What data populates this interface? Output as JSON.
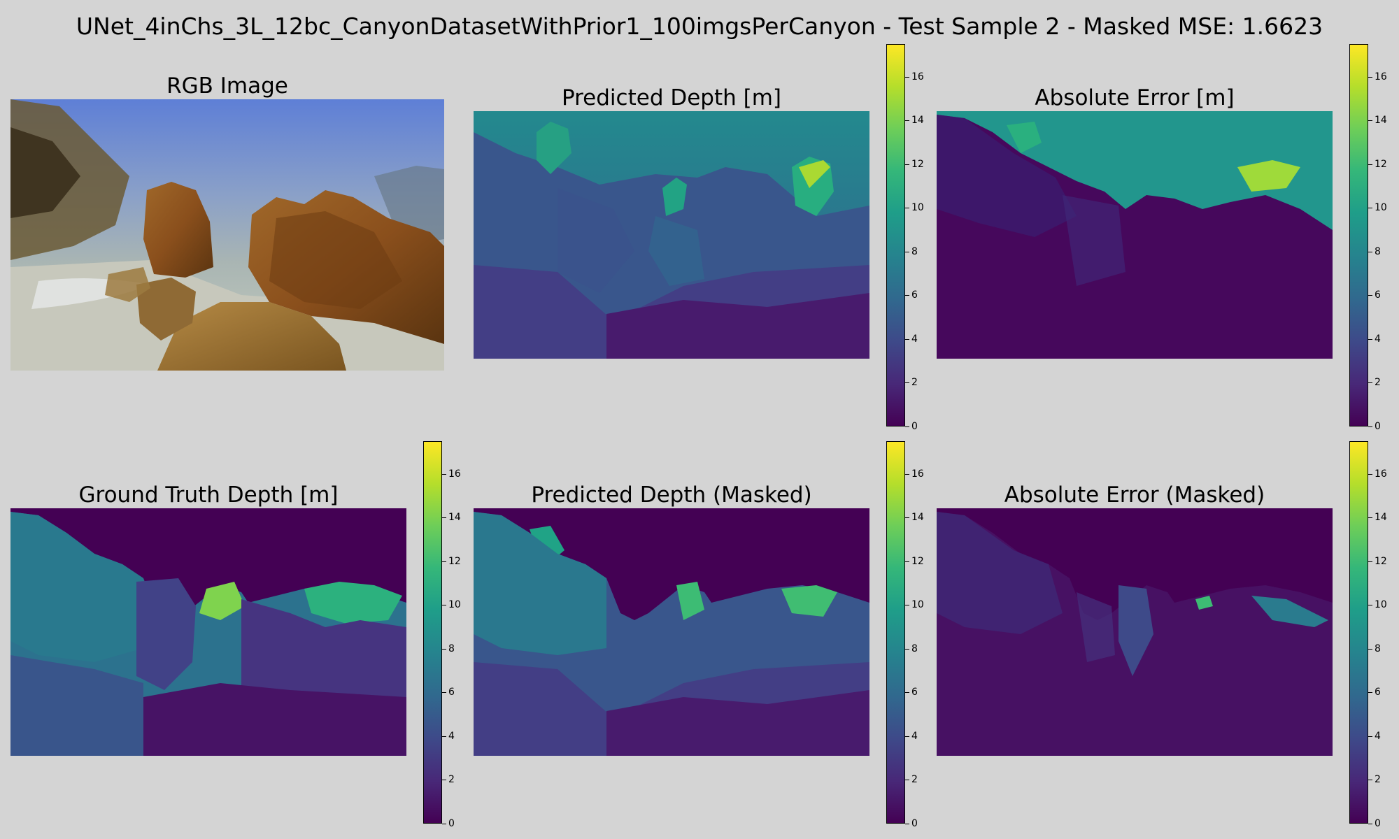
{
  "figure_title": "UNet_4inChs_3L_12bc_CanyonDatasetWithPrior1_100imgsPerCanyon - Test Sample 2 - Masked MSE: 1.6623",
  "colormap": {
    "name": "viridis",
    "stops": [
      "#440154",
      "#482878",
      "#3e4989",
      "#31688e",
      "#26828e",
      "#1f9e89",
      "#35b779",
      "#6ece58",
      "#b5de2b",
      "#fde725"
    ]
  },
  "chart_data": [
    {
      "type": "image",
      "title": "RGB Image",
      "content": "underwater photo of rocks on a sandy seabed"
    },
    {
      "type": "heatmap",
      "title": "Predicted Depth [m]",
      "colorbar": {
        "min": 0,
        "max": 17.5,
        "ticks": [
          0,
          2,
          4,
          6,
          8,
          10,
          12,
          14,
          16
        ]
      }
    },
    {
      "type": "heatmap",
      "title": "Absolute Error [m]",
      "colorbar": {
        "min": 0,
        "max": 17.5,
        "ticks": [
          0,
          2,
          4,
          6,
          8,
          10,
          12,
          14,
          16
        ]
      }
    },
    {
      "type": "heatmap",
      "title": "Ground Truth Depth [m]",
      "colorbar": {
        "min": 0,
        "max": 17.5,
        "ticks": [
          0,
          2,
          4,
          6,
          8,
          10,
          12,
          14,
          16
        ]
      }
    },
    {
      "type": "heatmap",
      "title": "Predicted Depth (Masked)",
      "colorbar": {
        "min": 0,
        "max": 17.5,
        "ticks": [
          0,
          2,
          4,
          6,
          8,
          10,
          12,
          14,
          16
        ]
      }
    },
    {
      "type": "heatmap",
      "title": "Absolute Error (Masked)",
      "colorbar": {
        "min": 0,
        "max": 17.5,
        "ticks": [
          0,
          2,
          4,
          6,
          8,
          10,
          12,
          14,
          16
        ]
      }
    }
  ]
}
